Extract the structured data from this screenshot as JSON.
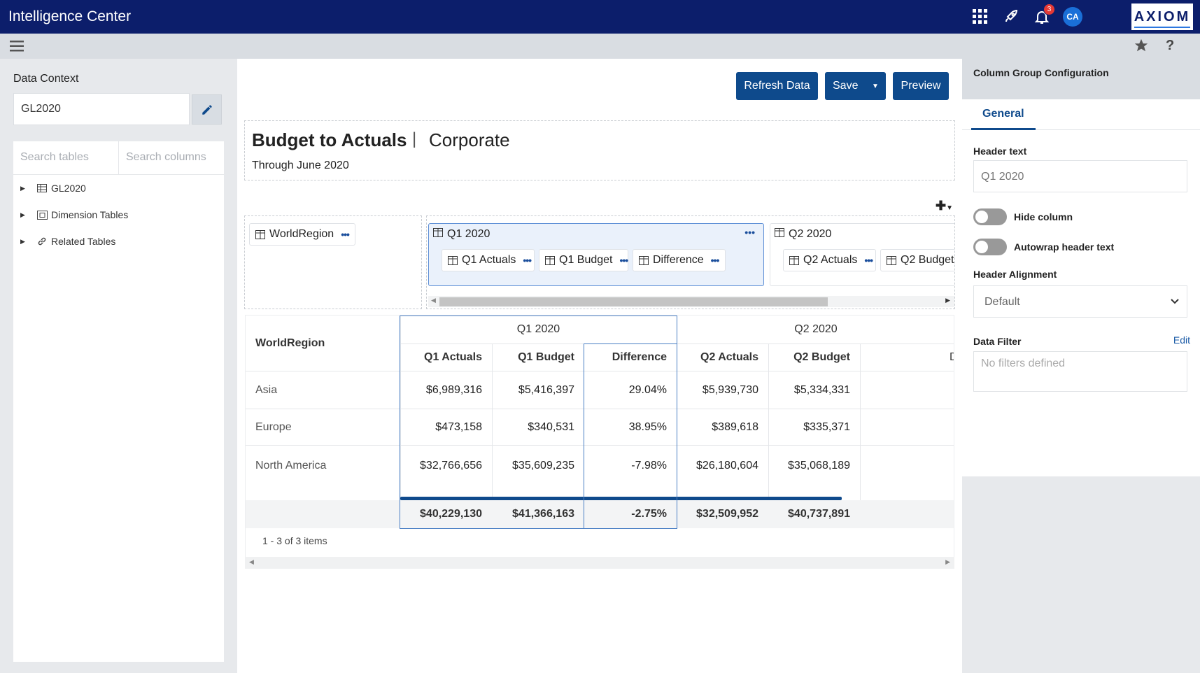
{
  "app": {
    "title": "Intelligence Center",
    "notification_count": "3",
    "avatar_initials": "CA",
    "logo_text": "AXIOM"
  },
  "colors": {
    "topbar": "#0c1e6b",
    "primary_button": "#0e4a8c",
    "accent": "#1a4e9c",
    "badge": "#e53935"
  },
  "left": {
    "data_context_label": "Data Context",
    "data_context_value": "GL2020",
    "search_tables_placeholder": "Search tables",
    "search_columns_placeholder": "Search columns",
    "tree": [
      {
        "label": "GL2020",
        "icon": "table-icon"
      },
      {
        "label": "Dimension Tables",
        "icon": "dimension-table-icon"
      },
      {
        "label": "Related Tables",
        "icon": "link-icon"
      }
    ]
  },
  "toolbar": {
    "refresh": "Refresh Data",
    "save": "Save",
    "preview": "Preview"
  },
  "report": {
    "title": "Budget to Actuals",
    "separator": "|",
    "subtitle": "Corporate",
    "date": "Through June 2020"
  },
  "config": {
    "row_chip": "WorldRegion",
    "groups": [
      {
        "title": "Q1 2020",
        "columns": [
          "Q1 Actuals",
          "Q1 Budget",
          "Difference"
        ]
      },
      {
        "title": "Q2 2020",
        "columns": [
          "Q2 Actuals",
          "Q2 Budget"
        ]
      }
    ]
  },
  "grid": {
    "row_header": "WorldRegion",
    "group_headers": [
      "Q1 2020",
      "Q2 2020"
    ],
    "columns": [
      "Q1 Actuals",
      "Q1 Budget",
      "Difference",
      "Q2 Actuals",
      "Q2 Budget",
      "D"
    ],
    "rows": [
      {
        "label": "Asia",
        "values": [
          "$6,989,316",
          "$5,416,397",
          "29.04%",
          "$5,939,730",
          "$5,334,331"
        ]
      },
      {
        "label": "Europe",
        "values": [
          "$473,158",
          "$340,531",
          "38.95%",
          "$389,618",
          "$335,371"
        ]
      },
      {
        "label": "North America",
        "values": [
          "$32,766,656",
          "$35,609,235",
          "-7.98%",
          "$26,180,604",
          "$35,068,189"
        ]
      }
    ],
    "totals": [
      "$40,229,130",
      "$41,366,163",
      "-2.75%",
      "$32,509,952",
      "$40,737,891"
    ],
    "pager": "1 - 3 of 3 items"
  },
  "right": {
    "title": "Column Group Configuration",
    "tab": "General",
    "header_text_label": "Header text",
    "header_text_value": "Q1 2020",
    "hide_column_label": "Hide column",
    "autowrap_label": "Autowrap header text",
    "alignment_label": "Header Alignment",
    "alignment_value": "Default",
    "filter_label": "Data Filter",
    "filter_edit": "Edit",
    "filter_placeholder": "No filters defined"
  }
}
